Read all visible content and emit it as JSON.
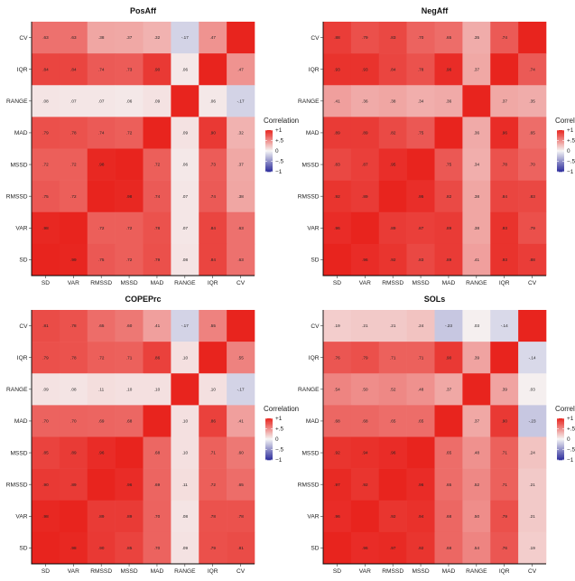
{
  "chart_data": [
    {
      "type": "heatmap",
      "title": "PosAff",
      "rows": [
        "CV",
        "IQR",
        "RANGE",
        "MAD",
        "MSSD",
        "RMSSD",
        "VAR",
        "SD"
      ],
      "columns": [
        "SD",
        "VAR",
        "RMSSD",
        "MSSD",
        "MAD",
        "RANGE",
        "IQR",
        "CV"
      ],
      "values": [
        [
          0.63,
          0.63,
          0.38,
          0.37,
          0.32,
          -0.17,
          0.47,
          1
        ],
        [
          0.84,
          0.84,
          0.74,
          0.73,
          0.9,
          0.06,
          1,
          0.47
        ],
        [
          0.08,
          0.07,
          0.07,
          0.06,
          0.09,
          1,
          0.06,
          -0.17
        ],
        [
          0.79,
          0.78,
          0.74,
          0.72,
          1,
          0.09,
          0.9,
          0.32
        ],
        [
          0.72,
          0.72,
          0.98,
          1,
          0.72,
          0.06,
          0.73,
          0.37
        ],
        [
          0.75,
          0.72,
          1,
          0.98,
          0.74,
          0.07,
          0.74,
          0.38
        ],
        [
          0.98,
          1,
          0.72,
          0.72,
          0.78,
          0.07,
          0.84,
          0.63
        ],
        [
          1,
          0.99,
          0.75,
          0.72,
          0.79,
          0.08,
          0.84,
          0.63
        ]
      ],
      "labels": [
        [
          ".63",
          ".63",
          ".38",
          ".37",
          ".32",
          "-.17",
          ".47",
          ""
        ],
        [
          ".84",
          ".84",
          ".74",
          ".73",
          ".90",
          ".06",
          "",
          ".47"
        ],
        [
          ".08",
          ".07",
          ".07",
          ".06",
          ".09",
          "",
          ".06",
          "-.17"
        ],
        [
          ".79",
          ".78",
          ".74",
          ".72",
          "",
          ".09",
          ".90",
          ".32"
        ],
        [
          ".72",
          ".72",
          ".98",
          "",
          ".72",
          ".06",
          ".73",
          ".37"
        ],
        [
          ".75",
          ".72",
          "",
          ".98",
          ".74",
          ".07",
          ".74",
          ".38"
        ],
        [
          ".98",
          "",
          ".72",
          ".72",
          ".78",
          ".07",
          ".84",
          ".63"
        ],
        [
          "",
          ".99",
          ".75",
          ".72",
          ".79",
          ".08",
          ".84",
          ".63"
        ]
      ]
    },
    {
      "type": "heatmap",
      "title": "NegAff",
      "rows": [
        "CV",
        "IQR",
        "RANGE",
        "MAD",
        "MSSD",
        "RMSSD",
        "VAR",
        "SD"
      ],
      "columns": [
        "SD",
        "VAR",
        "RMSSD",
        "MSSD",
        "MAD",
        "RANGE",
        "IQR",
        "CV"
      ],
      "values": [
        [
          0.88,
          0.79,
          0.83,
          0.7,
          0.65,
          0.35,
          0.74,
          1
        ],
        [
          0.93,
          0.93,
          0.84,
          0.78,
          0.96,
          0.37,
          1,
          0.74
        ],
        [
          0.41,
          0.36,
          0.38,
          0.34,
          0.36,
          1,
          0.37,
          0.35
        ],
        [
          0.89,
          0.89,
          0.82,
          0.75,
          1,
          0.36,
          0.96,
          0.65
        ],
        [
          0.83,
          0.87,
          0.95,
          1,
          0.75,
          0.34,
          0.78,
          0.7
        ],
        [
          0.92,
          0.89,
          1,
          0.95,
          0.82,
          0.38,
          0.84,
          0.83
        ],
        [
          0.96,
          1,
          0.89,
          0.87,
          0.89,
          0.38,
          0.93,
          0.79
        ],
        [
          1,
          0.96,
          0.92,
          0.83,
          0.89,
          0.41,
          0.93,
          0.88
        ]
      ],
      "labels": [
        [
          ".88",
          ".79",
          ".83",
          ".70",
          ".65",
          ".35",
          ".74",
          ""
        ],
        [
          ".93",
          ".93",
          ".84",
          ".78",
          ".96",
          ".37",
          "",
          ".74"
        ],
        [
          ".41",
          ".36",
          ".38",
          ".34",
          ".36",
          "",
          ".37",
          ".35"
        ],
        [
          ".89",
          ".89",
          ".82",
          ".75",
          "",
          ".36",
          ".96",
          ".65"
        ],
        [
          ".83",
          ".87",
          ".95",
          "",
          ".75",
          ".34",
          ".78",
          ".70"
        ],
        [
          ".92",
          ".89",
          "",
          ".95",
          ".82",
          ".38",
          ".84",
          ".83"
        ],
        [
          ".96",
          "",
          ".89",
          ".87",
          ".89",
          ".38",
          ".93",
          ".79"
        ],
        [
          "",
          ".96",
          ".92",
          ".83",
          ".89",
          ".41",
          ".93",
          ".88"
        ]
      ]
    },
    {
      "type": "heatmap",
      "title": "COPEPrc",
      "rows": [
        "CV",
        "IQR",
        "RANGE",
        "MAD",
        "MSSD",
        "RMSSD",
        "VAR",
        "SD"
      ],
      "columns": [
        "SD",
        "VAR",
        "RMSSD",
        "MSSD",
        "MAD",
        "RANGE",
        "IQR",
        "CV"
      ],
      "values": [
        [
          0.81,
          0.78,
          0.65,
          0.6,
          0.41,
          -0.17,
          0.55,
          1
        ],
        [
          0.79,
          0.78,
          0.72,
          0.71,
          0.86,
          0.1,
          1,
          0.55
        ],
        [
          0.09,
          0.08,
          0.11,
          0.1,
          0.1,
          1,
          0.1,
          -0.17
        ],
        [
          0.7,
          0.7,
          0.69,
          0.68,
          1,
          0.1,
          0.86,
          0.41
        ],
        [
          0.85,
          0.89,
          0.96,
          1,
          0.68,
          0.1,
          0.71,
          0.6
        ],
        [
          0.9,
          0.89,
          1,
          0.96,
          0.69,
          0.11,
          0.72,
          0.65
        ],
        [
          0.98,
          1,
          0.89,
          0.89,
          0.7,
          0.08,
          0.78,
          0.78
        ],
        [
          1,
          0.98,
          0.9,
          0.85,
          0.7,
          0.09,
          0.79,
          0.81
        ]
      ],
      "labels": [
        [
          ".81",
          ".78",
          ".65",
          ".60",
          ".41",
          "-.17",
          ".55",
          ""
        ],
        [
          ".79",
          ".78",
          ".72",
          ".71",
          ".86",
          ".10",
          "",
          ".55"
        ],
        [
          ".09",
          ".08",
          ".11",
          ".10",
          ".10",
          "",
          ".10",
          "-.17"
        ],
        [
          ".70",
          ".70",
          ".69",
          ".68",
          "",
          ".10",
          ".86",
          ".41"
        ],
        [
          ".85",
          ".89",
          ".96",
          "",
          ".68",
          ".10",
          ".71",
          ".60"
        ],
        [
          ".90",
          ".89",
          "",
          ".96",
          ".69",
          ".11",
          ".72",
          ".65"
        ],
        [
          ".98",
          "",
          ".89",
          ".89",
          ".70",
          ".08",
          ".78",
          ".78"
        ],
        [
          "",
          ".98",
          ".90",
          ".85",
          ".70",
          ".09",
          ".79",
          ".81"
        ]
      ]
    },
    {
      "type": "heatmap",
      "title": "SOLs",
      "rows": [
        "CV",
        "IQR",
        "RANGE",
        "MAD",
        "MSSD",
        "RMSSD",
        "VAR",
        "SD"
      ],
      "columns": [
        "SD",
        "VAR",
        "RMSSD",
        "MSSD",
        "MAD",
        "RANGE",
        "IQR",
        "CV"
      ],
      "values": [
        [
          0.19,
          0.21,
          0.21,
          0.24,
          -0.23,
          0.03,
          -0.14,
          1
        ],
        [
          0.76,
          0.79,
          0.71,
          0.71,
          0.9,
          0.39,
          1,
          -0.14
        ],
        [
          0.54,
          0.5,
          0.52,
          0.48,
          0.37,
          1,
          0.39,
          0.03
        ],
        [
          0.68,
          0.68,
          0.65,
          0.65,
          1,
          0.37,
          0.9,
          -0.23
        ],
        [
          0.92,
          0.94,
          0.96,
          1,
          0.65,
          0.48,
          0.71,
          0.24
        ],
        [
          0.97,
          0.92,
          1,
          0.96,
          0.65,
          0.52,
          0.71,
          0.21
        ],
        [
          0.96,
          1,
          0.92,
          0.94,
          0.68,
          0.5,
          0.79,
          0.21
        ],
        [
          1,
          0.96,
          0.97,
          0.92,
          0.68,
          0.54,
          0.76,
          0.19
        ]
      ],
      "labels": [
        [
          ".19",
          ".21",
          ".21",
          ".24",
          "-.23",
          ".03",
          "-.14",
          ""
        ],
        [
          ".76",
          ".79",
          ".71",
          ".71",
          ".90",
          ".39",
          "",
          "-.14"
        ],
        [
          ".54",
          ".50",
          ".52",
          ".48",
          ".37",
          "",
          ".39",
          ".03"
        ],
        [
          ".68",
          ".68",
          ".65",
          ".65",
          "",
          ".37",
          ".90",
          "-.23"
        ],
        [
          ".92",
          ".94",
          ".96",
          "",
          ".65",
          ".48",
          ".71",
          ".24"
        ],
        [
          ".97",
          ".92",
          "",
          ".96",
          ".65",
          ".52",
          ".71",
          ".21"
        ],
        [
          ".96",
          "",
          ".92",
          ".94",
          ".68",
          ".50",
          ".79",
          ".21"
        ],
        [
          "",
          ".96",
          ".97",
          ".92",
          ".68",
          ".54",
          ".76",
          ".19"
        ]
      ]
    }
  ],
  "legend": {
    "title": "Correlation",
    "labels": [
      "+1",
      "+.5",
      "0",
      "−.5",
      "−1"
    ],
    "scale": [
      1,
      0.5,
      0,
      -0.5,
      -1
    ]
  },
  "colors": {
    "high": "#e8241e",
    "mid": "#f5f5f5",
    "low": "#2c2c9c"
  }
}
